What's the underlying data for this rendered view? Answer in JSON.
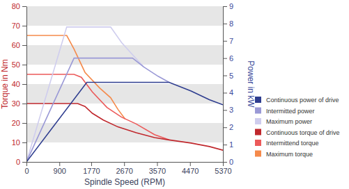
{
  "chart_data": {
    "type": "line",
    "x_label": "Spindle Speed (RPM)",
    "y_label": "Torque in Nm",
    "y2_label": "Power in kW",
    "xlim": [
      0,
      5370
    ],
    "xticks": [
      0,
      900,
      1770,
      2670,
      3570,
      4470,
      5370
    ],
    "ylim": [
      0,
      80
    ],
    "yticks": [
      0,
      10,
      20,
      30,
      40,
      50,
      60,
      70,
      80
    ],
    "y2lim": [
      0,
      9
    ],
    "y2ticks": [
      0,
      1,
      2,
      3,
      4,
      5,
      6,
      7,
      8,
      9
    ],
    "grid": true,
    "legend": "right",
    "series": [
      {
        "name": "Continuous power of drive",
        "color": "#2e3d8f",
        "axis": "y2",
        "x": [
          0,
          1650,
          3900,
          4500,
          5000,
          5370
        ],
        "values": [
          0,
          4.6,
          4.6,
          4.1,
          3.6,
          3.3
        ]
      },
      {
        "name": "Intermitted power",
        "color": "#9a99d6",
        "axis": "y2",
        "x": [
          0,
          1300,
          2900,
          3200,
          3600,
          3900
        ],
        "values": [
          0,
          6.0,
          6.0,
          5.5,
          4.95,
          4.6
        ]
      },
      {
        "name": "Maximum power",
        "color": "#cfcdee",
        "axis": "y2",
        "x": [
          0,
          1100,
          2300,
          2600,
          2900,
          3200
        ],
        "values": [
          0,
          7.8,
          7.8,
          6.9,
          6.2,
          5.5
        ]
      },
      {
        "name": "Continuous torque of drive",
        "color": "#c0282d",
        "x": [
          0,
          1400,
          1600,
          1800,
          2100,
          2500,
          3000,
          3500,
          3900,
          4500,
          5000,
          5370
        ],
        "values": [
          30,
          30,
          28.5,
          25,
          21.5,
          18,
          15,
          12.5,
          11.3,
          9.7,
          7.9,
          6
        ]
      },
      {
        "name": "Intermittend torque",
        "color": "#ec5a5a",
        "x": [
          0,
          1300,
          1500,
          1800,
          2200,
          2600,
          3000,
          3500,
          3900
        ],
        "values": [
          45,
          45,
          43.5,
          36,
          28,
          23,
          19.5,
          14,
          11.3
        ]
      },
      {
        "name": "Maximum torque",
        "color": "#f58a4b",
        "x": [
          0,
          1100,
          1300,
          1600,
          2000,
          2300,
          2500,
          2700
        ],
        "values": [
          65,
          65,
          58,
          46,
          38,
          33,
          27,
          22
        ]
      }
    ]
  }
}
